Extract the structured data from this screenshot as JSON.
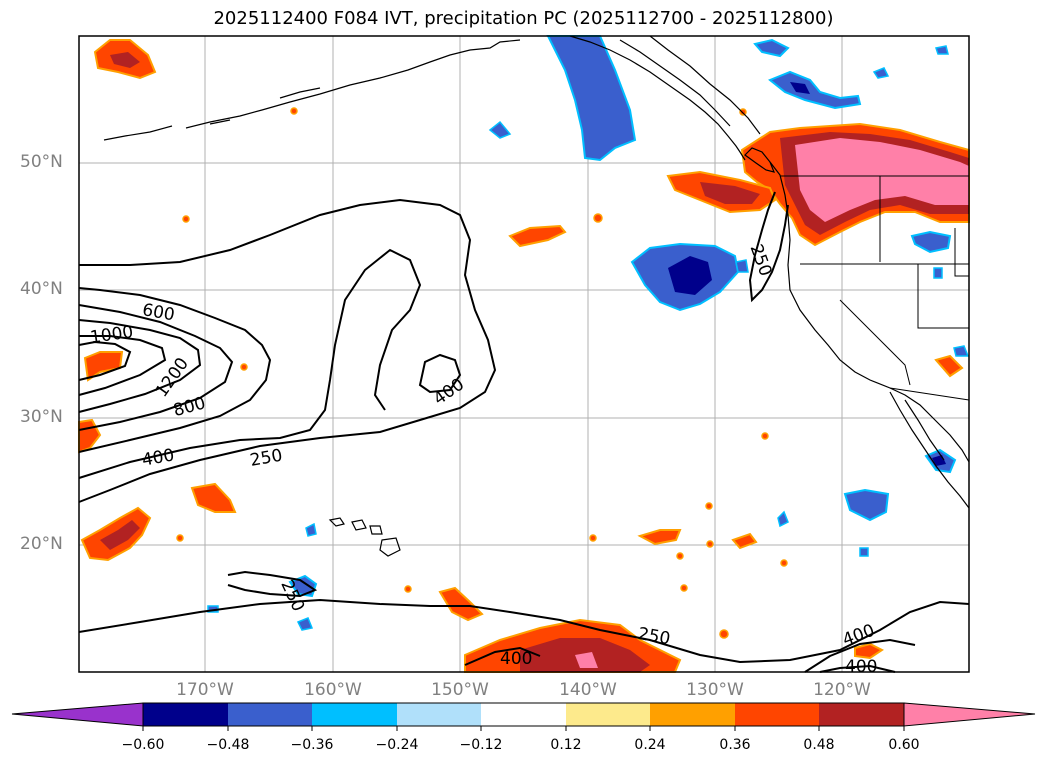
{
  "title": "2025112400 F084 IVT, precipitation PC (2025112700 - 2025112800)",
  "lat_labels": [
    "50°N",
    "40°N",
    "30°N",
    "20°N"
  ],
  "lon_labels": [
    "170°W",
    "160°W",
    "150°W",
    "140°W",
    "130°W",
    "120°W"
  ],
  "contour_labels": {
    "c600": "600",
    "c1000": "1000",
    "c1200": "1200",
    "c800": "800",
    "c400a": "400",
    "c250a": "250",
    "c400b": "400",
    "c250b": "250",
    "c250c": "250",
    "c400c": "400",
    "c400d": "400",
    "c400e": "400",
    "c250d": "250"
  },
  "colorbar": {
    "ticks": [
      "−0.60",
      "−0.48",
      "−0.36",
      "−0.24",
      "−0.12",
      "0.12",
      "0.24",
      "0.36",
      "0.48",
      "0.60"
    ],
    "colors": [
      "#9932cc",
      "#00008b",
      "#3a5fcd",
      "#00bfff",
      "#b0e0fa",
      "#ffffff",
      "#fdea8c",
      "#ffa000",
      "#ff4500",
      "#b22222",
      "#ff80a8"
    ]
  }
}
